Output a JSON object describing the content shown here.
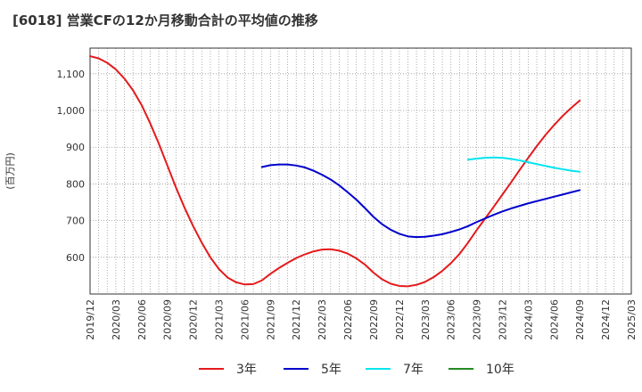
{
  "title": "[6018]  営業CFの12か月移動合計の平均値の推移",
  "chart_data": {
    "type": "line",
    "title": "[6018]  営業CFの12か月移動合計の平均値の推移",
    "ylabel": "(百万円)",
    "xlabel": "",
    "ylim": [
      500,
      1170
    ],
    "y_ticks": [
      600,
      700,
      800,
      900,
      1000,
      1100
    ],
    "y_tick_labels": [
      "600",
      "700",
      "800",
      "900",
      "1,000",
      "1,100"
    ],
    "x_ticks": [
      "2019/12",
      "2020/03",
      "2020/06",
      "2020/09",
      "2020/12",
      "2021/03",
      "2021/06",
      "2021/09",
      "2021/12",
      "2022/03",
      "2022/06",
      "2022/09",
      "2022/12",
      "2023/03",
      "2023/06",
      "2023/09",
      "2023/12",
      "2024/03",
      "2024/06",
      "2024/09",
      "2024/12",
      "2025/03"
    ],
    "grid": true,
    "legend_position": "bottom",
    "series": [
      {
        "name": "3年",
        "color": "#e41a1c",
        "points": [
          [
            "2019/12",
            1148
          ],
          [
            "2020/01",
            1142
          ],
          [
            "2020/02",
            1130
          ],
          [
            "2020/03",
            1112
          ],
          [
            "2020/04",
            1087
          ],
          [
            "2020/05",
            1055
          ],
          [
            "2020/06",
            1015
          ],
          [
            "2020/07",
            965
          ],
          [
            "2020/08",
            910
          ],
          [
            "2020/09",
            850
          ],
          [
            "2020/10",
            790
          ],
          [
            "2020/11",
            735
          ],
          [
            "2020/12",
            685
          ],
          [
            "2021/01",
            640
          ],
          [
            "2021/02",
            600
          ],
          [
            "2021/03",
            568
          ],
          [
            "2021/04",
            545
          ],
          [
            "2021/05",
            532
          ],
          [
            "2021/06",
            526
          ],
          [
            "2021/07",
            527
          ],
          [
            "2021/08",
            537
          ],
          [
            "2021/09",
            555
          ],
          [
            "2021/10",
            571
          ],
          [
            "2021/11",
            585
          ],
          [
            "2021/12",
            598
          ],
          [
            "2022/01",
            608
          ],
          [
            "2022/02",
            616
          ],
          [
            "2022/03",
            621
          ],
          [
            "2022/04",
            622
          ],
          [
            "2022/05",
            618
          ],
          [
            "2022/06",
            610
          ],
          [
            "2022/07",
            597
          ],
          [
            "2022/08",
            580
          ],
          [
            "2022/09",
            558
          ],
          [
            "2022/10",
            540
          ],
          [
            "2022/11",
            528
          ],
          [
            "2022/12",
            522
          ],
          [
            "2023/01",
            521
          ],
          [
            "2023/02",
            525
          ],
          [
            "2023/03",
            533
          ],
          [
            "2023/04",
            546
          ],
          [
            "2023/05",
            563
          ],
          [
            "2023/06",
            584
          ],
          [
            "2023/07",
            609
          ],
          [
            "2023/08",
            640
          ],
          [
            "2023/09",
            674
          ],
          [
            "2023/10",
            706
          ],
          [
            "2023/11",
            738
          ],
          [
            "2023/12",
            771
          ],
          [
            "2024/01",
            804
          ],
          [
            "2024/02",
            838
          ],
          [
            "2024/03",
            871
          ],
          [
            "2024/04",
            903
          ],
          [
            "2024/05",
            933
          ],
          [
            "2024/06",
            960
          ],
          [
            "2024/07",
            985
          ],
          [
            "2024/08",
            1007
          ],
          [
            "2024/09",
            1027
          ]
        ]
      },
      {
        "name": "5年",
        "color": "#0000cc",
        "points": [
          [
            "2021/08",
            846
          ],
          [
            "2021/09",
            851
          ],
          [
            "2021/10",
            853
          ],
          [
            "2021/11",
            853
          ],
          [
            "2021/12",
            850
          ],
          [
            "2022/01",
            845
          ],
          [
            "2022/02",
            836
          ],
          [
            "2022/03",
            825
          ],
          [
            "2022/04",
            812
          ],
          [
            "2022/05",
            796
          ],
          [
            "2022/06",
            777
          ],
          [
            "2022/07",
            757
          ],
          [
            "2022/08",
            734
          ],
          [
            "2022/09",
            710
          ],
          [
            "2022/10",
            690
          ],
          [
            "2022/11",
            675
          ],
          [
            "2022/12",
            664
          ],
          [
            "2023/01",
            657
          ],
          [
            "2023/02",
            655
          ],
          [
            "2023/03",
            656
          ],
          [
            "2023/04",
            659
          ],
          [
            "2023/05",
            663
          ],
          [
            "2023/06",
            669
          ],
          [
            "2023/07",
            676
          ],
          [
            "2023/08",
            685
          ],
          [
            "2023/09",
            696
          ],
          [
            "2023/10",
            706
          ],
          [
            "2023/11",
            716
          ],
          [
            "2023/12",
            725
          ],
          [
            "2024/01",
            733
          ],
          [
            "2024/02",
            740
          ],
          [
            "2024/03",
            747
          ],
          [
            "2024/04",
            753
          ],
          [
            "2024/05",
            759
          ],
          [
            "2024/06",
            765
          ],
          [
            "2024/07",
            771
          ],
          [
            "2024/08",
            777
          ],
          [
            "2024/09",
            783
          ]
        ]
      },
      {
        "name": "7年",
        "color": "#00e5ee",
        "points": [
          [
            "2023/08",
            866
          ],
          [
            "2023/09",
            869
          ],
          [
            "2023/10",
            871
          ],
          [
            "2023/11",
            872
          ],
          [
            "2023/12",
            871
          ],
          [
            "2024/01",
            868
          ],
          [
            "2024/02",
            864
          ],
          [
            "2024/03",
            859
          ],
          [
            "2024/04",
            854
          ],
          [
            "2024/05",
            849
          ],
          [
            "2024/06",
            844
          ],
          [
            "2024/07",
            840
          ],
          [
            "2024/08",
            836
          ],
          [
            "2024/09",
            833
          ]
        ]
      },
      {
        "name": "10年",
        "color": "#228b22",
        "points": []
      }
    ]
  }
}
